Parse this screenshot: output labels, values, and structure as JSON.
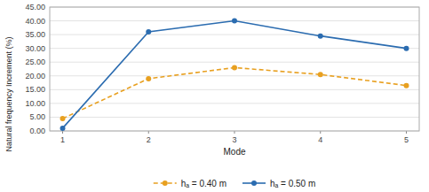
{
  "chart_data": {
    "type": "line",
    "x": [
      1,
      2,
      3,
      4,
      5
    ],
    "series": [
      {
        "name": "hₐ = 0.40 m",
        "color": "#e8a020",
        "line_style": "dashed",
        "marker": "circle",
        "values": [
          4.5,
          19.0,
          23.0,
          20.5,
          16.5
        ]
      },
      {
        "name": "hₐ = 0.50 m",
        "color": "#2b6cb0",
        "line_style": "solid",
        "marker": "circle",
        "values": [
          1.0,
          36.0,
          40.0,
          34.5,
          30.0
        ]
      }
    ],
    "x_label": "Mode",
    "y_label": "Natural frequency Increment (%)",
    "xlim": [
      0.85,
      5.15
    ],
    "xticks": [
      1,
      2,
      3,
      4,
      5
    ],
    "ylim": [
      0.0,
      45.0
    ],
    "yticks": [
      {
        "value": 0.0,
        "label": "0.00"
      },
      {
        "value": 5.0,
        "label": "5.00"
      },
      {
        "value": 10.0,
        "label": "10.00"
      },
      {
        "value": 15.0,
        "label": "15.00"
      },
      {
        "value": 20.0,
        "label": "20.00"
      },
      {
        "value": 25.0,
        "label": "25.00"
      },
      {
        "value": 30.0,
        "label": "30.00"
      },
      {
        "value": 35.0,
        "label": "35.00"
      },
      {
        "value": 40.0,
        "label": "40.00"
      },
      {
        "value": 45.0,
        "label": "45.00"
      }
    ],
    "grid": true,
    "legend": "bottom"
  }
}
